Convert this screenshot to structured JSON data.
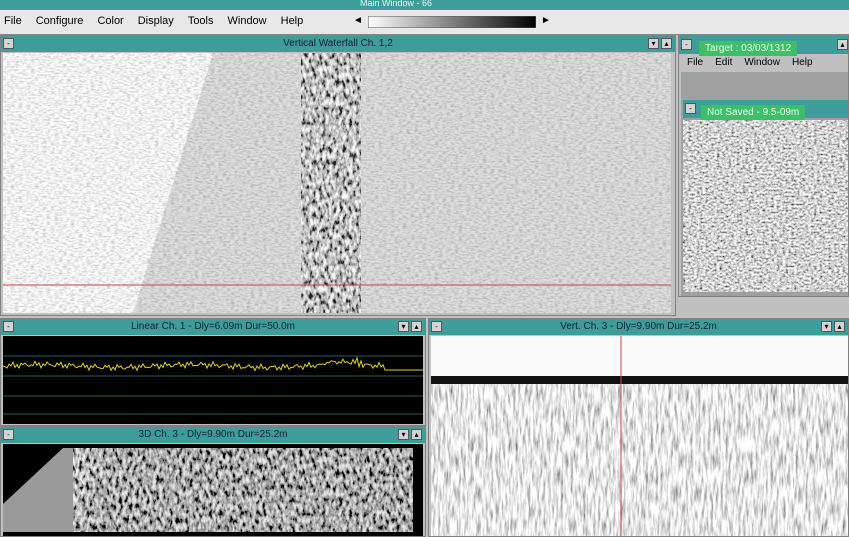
{
  "app": {
    "title": "Main Window - 66",
    "menu": [
      "File",
      "Configure",
      "Color",
      "Display",
      "Tools",
      "Window",
      "Help"
    ]
  },
  "windows": {
    "waterfall": {
      "title": "Vertical Waterfall Ch. 1,2"
    },
    "target": {
      "title": "Target : 03/03/1312",
      "menu": [
        "File",
        "Edit",
        "Window",
        "Help"
      ],
      "subtitle": "Not Saved - 9.5-09m"
    },
    "linear": {
      "title": "Linear Ch. 1 - Dly=6.09m Dur=50.0m"
    },
    "vert": {
      "title": "Vert. Ch. 3 - Dly=9.90m Dur=25.2m"
    },
    "threed": {
      "title": "3D Ch. 3 - Dly=9.90m Dur=25.2m"
    }
  }
}
